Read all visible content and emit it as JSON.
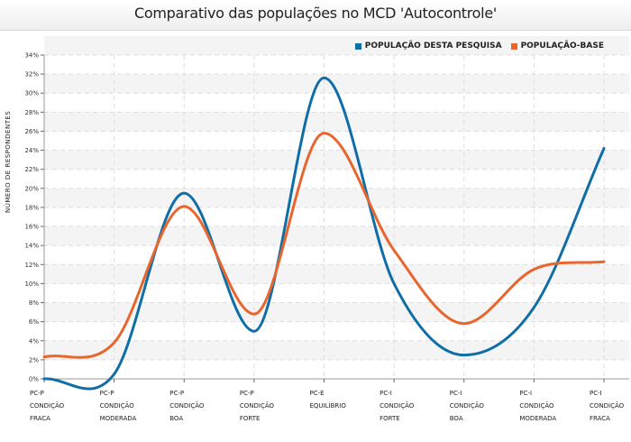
{
  "chart_data": {
    "type": "line",
    "title": "Comparativo das populações no MCD 'Autocontrole'",
    "xlabel": "",
    "ylabel": "NÚMERO DE RESPONDENTES",
    "ylim": [
      0,
      34
    ],
    "ytick_step": 2,
    "ytick_suffix": "%",
    "grid": true,
    "legend_position": "top-right",
    "categories": [
      [
        "PC-P",
        "CONDIÇÃO",
        "FRACA"
      ],
      [
        "PC-P",
        "CONDIÇÃO",
        "MODERADA"
      ],
      [
        "PC-P",
        "CONDIÇÃO",
        "BOA"
      ],
      [
        "PC-P",
        "CONDIÇÃO",
        "FORTE"
      ],
      [
        "PC-E",
        "EQUILÍBRIO"
      ],
      [
        "PC-I",
        "CONDIÇÃO",
        "FORTE"
      ],
      [
        "PC-I",
        "CONDIÇÃO",
        "BOA"
      ],
      [
        "PC-I",
        "CONDIÇÃO",
        "MODERADA"
      ],
      [
        "PC-I",
        "CONDIÇÃO",
        "FRACA"
      ]
    ],
    "series": [
      {
        "name": "POPULAÇÃO DESTA PESQUISA",
        "color": "#0f6ea6",
        "values": [
          0.0,
          0.5,
          19.5,
          5.0,
          31.6,
          10.0,
          2.5,
          7.5,
          24.2
        ]
      },
      {
        "name": "POPULAÇÃO-BASE",
        "color": "#e8662e",
        "values": [
          2.3,
          3.8,
          18.1,
          6.8,
          25.8,
          13.5,
          5.8,
          11.5,
          12.3
        ]
      }
    ]
  }
}
